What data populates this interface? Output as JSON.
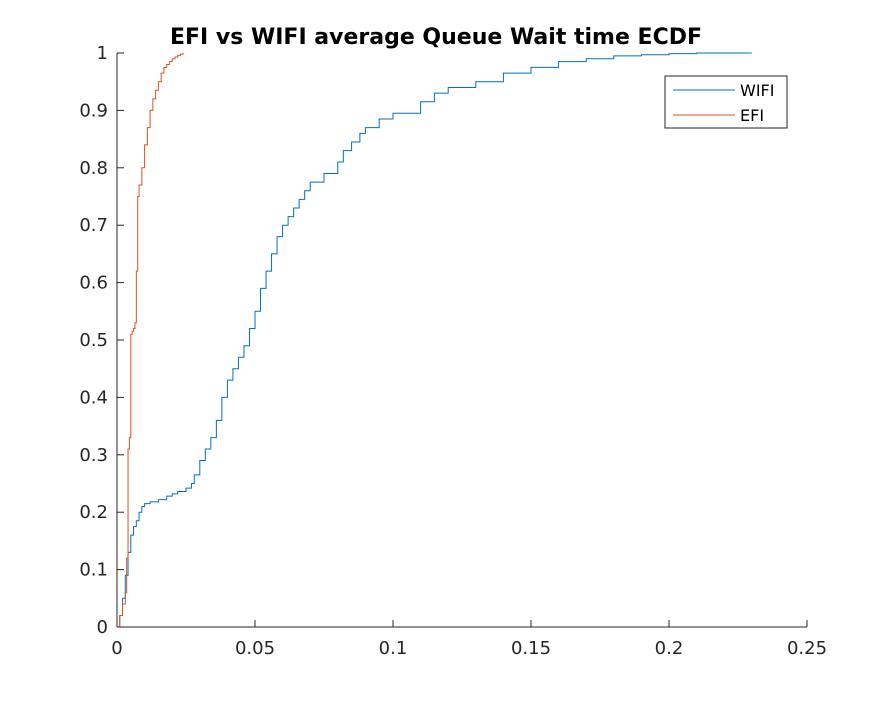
{
  "chart_data": {
    "type": "line",
    "title": "EFI vs WIFI average Queue Wait time ECDF",
    "xlabel": "",
    "ylabel": "",
    "xlim": [
      0,
      0.25
    ],
    "ylim": [
      0,
      1
    ],
    "xticks": [
      0,
      0.05,
      0.1,
      0.15,
      0.2,
      0.25
    ],
    "xtick_labels": [
      "0",
      "0.05",
      "0.1",
      "0.15",
      "0.2",
      "0.25"
    ],
    "yticks": [
      0,
      0.1,
      0.2,
      0.3,
      0.4,
      0.5,
      0.6,
      0.7,
      0.8,
      0.9,
      1
    ],
    "ytick_labels": [
      "0",
      "0.1",
      "0.2",
      "0.3",
      "0.4",
      "0.5",
      "0.6",
      "0.7",
      "0.8",
      "0.9",
      "1"
    ],
    "grid": false,
    "legend_position": "top-right",
    "series": [
      {
        "name": "WIFI",
        "color": "#0072bd",
        "x": [
          0,
          0.001,
          0.002,
          0.003,
          0.004,
          0.005,
          0.006,
          0.007,
          0.008,
          0.009,
          0.01,
          0.012,
          0.015,
          0.018,
          0.02,
          0.022,
          0.025,
          0.027,
          0.028,
          0.03,
          0.032,
          0.034,
          0.036,
          0.038,
          0.04,
          0.042,
          0.044,
          0.046,
          0.048,
          0.05,
          0.052,
          0.054,
          0.056,
          0.058,
          0.06,
          0.062,
          0.064,
          0.066,
          0.068,
          0.07,
          0.075,
          0.08,
          0.082,
          0.085,
          0.088,
          0.09,
          0.095,
          0.1,
          0.11,
          0.115,
          0.12,
          0.13,
          0.14,
          0.15,
          0.16,
          0.17,
          0.18,
          0.19,
          0.2,
          0.21,
          0.23
        ],
        "y": [
          0,
          0.02,
          0.05,
          0.09,
          0.13,
          0.16,
          0.175,
          0.185,
          0.2,
          0.21,
          0.215,
          0.218,
          0.222,
          0.228,
          0.232,
          0.236,
          0.242,
          0.25,
          0.265,
          0.29,
          0.31,
          0.33,
          0.36,
          0.4,
          0.43,
          0.45,
          0.47,
          0.49,
          0.52,
          0.55,
          0.59,
          0.62,
          0.65,
          0.68,
          0.7,
          0.715,
          0.73,
          0.745,
          0.76,
          0.775,
          0.79,
          0.81,
          0.83,
          0.845,
          0.86,
          0.87,
          0.885,
          0.895,
          0.915,
          0.93,
          0.94,
          0.95,
          0.965,
          0.975,
          0.985,
          0.99,
          0.995,
          0.997,
          0.999,
          1,
          1
        ]
      },
      {
        "name": "EFI",
        "color": "#d95319",
        "x": [
          0,
          0.001,
          0.002,
          0.003,
          0.0035,
          0.004,
          0.0045,
          0.005,
          0.0055,
          0.006,
          0.0065,
          0.007,
          0.0075,
          0.008,
          0.009,
          0.01,
          0.011,
          0.012,
          0.013,
          0.014,
          0.015,
          0.016,
          0.017,
          0.018,
          0.019,
          0.02,
          0.021,
          0.022,
          0.023,
          0.024
        ],
        "y": [
          0,
          0.02,
          0.04,
          0.06,
          0.12,
          0.31,
          0.33,
          0.51,
          0.515,
          0.52,
          0.53,
          0.62,
          0.75,
          0.77,
          0.8,
          0.84,
          0.87,
          0.9,
          0.92,
          0.935,
          0.95,
          0.965,
          0.975,
          0.98,
          0.985,
          0.99,
          0.993,
          0.996,
          0.998,
          1
        ]
      }
    ]
  }
}
